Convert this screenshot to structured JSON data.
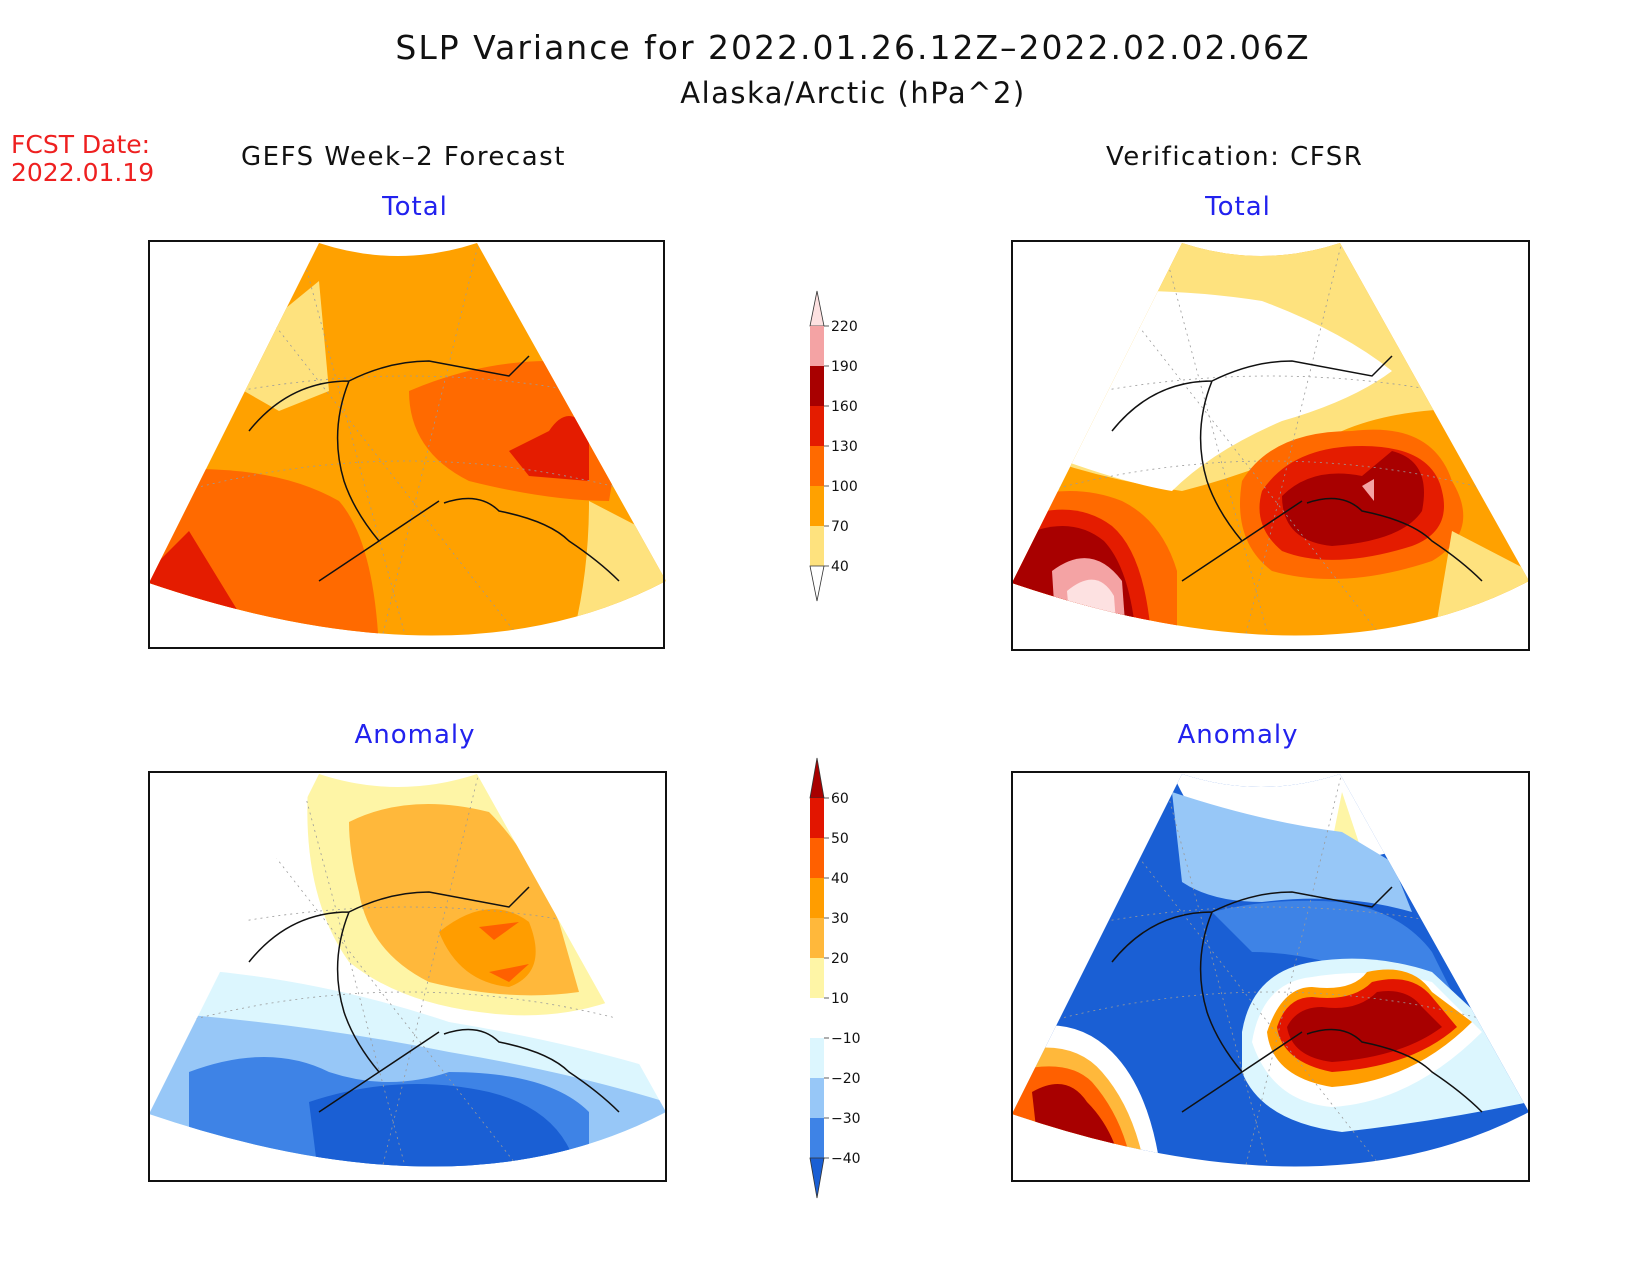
{
  "title": "SLP Variance for 2022.01.26.12Z–2022.02.02.06Z",
  "subtitle": "Alaska/Arctic (hPa^2)",
  "forecast_date": {
    "label": "FCST Date:",
    "value": "2022.01.19"
  },
  "columns": {
    "left": "GEFS Week–2 Forecast",
    "right": "Verification: CFSR"
  },
  "panels": {
    "forecast_total": "Total",
    "verification_total": "Total",
    "forecast_anomaly": "Anomaly",
    "verification_anomaly": "Anomaly"
  },
  "colorbars": {
    "total": {
      "ticks": [
        "40",
        "70",
        "100",
        "130",
        "160",
        "190",
        "220"
      ],
      "colors": [
        "#fee27e",
        "#ffa100",
        "#ff6a00",
        "#e41c00",
        "#a80000",
        "#f4a3a4",
        "#fde1e1"
      ]
    },
    "anomaly": {
      "ticks": [
        "−40",
        "−30",
        "−20",
        "−10",
        "10",
        "20",
        "30",
        "40",
        "50",
        "60"
      ],
      "colors": [
        "#1a5fd4",
        "#3e83e6",
        "#97c7f7",
        "#dcf6fe",
        "#ffffff",
        "#fef5a6",
        "#ffb83b",
        "#ff9d00",
        "#ff6000",
        "#e21500",
        "#a80000"
      ]
    }
  }
}
